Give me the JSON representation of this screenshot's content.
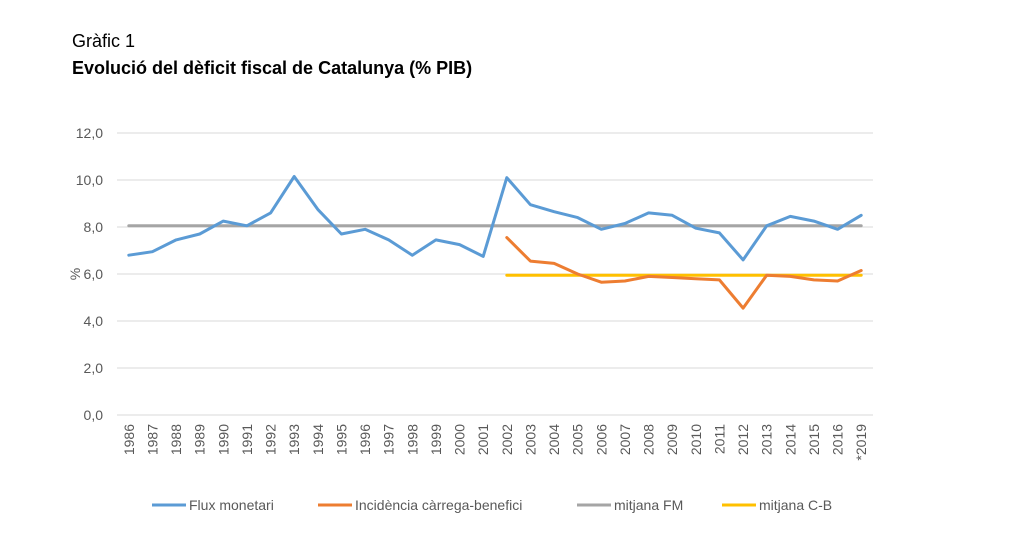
{
  "header": {
    "subtitle": "Gràfic 1",
    "title": "Evolució del dèficit fiscal de Catalunya (% PIB)"
  },
  "chart_data": {
    "type": "line",
    "title": "Evolució del dèficit fiscal de Catalunya (% PIB)",
    "xlabel": "",
    "ylabel": "%",
    "ylim": [
      0,
      12
    ],
    "yticks": [
      "0,0",
      "2,0",
      "4,0",
      "6,0",
      "8,0",
      "10,0",
      "12,0"
    ],
    "ytick_values": [
      0,
      2,
      4,
      6,
      8,
      10,
      12
    ],
    "grid": true,
    "legend_position": "bottom",
    "categories": [
      "1986",
      "1987",
      "1988",
      "1989",
      "1990",
      "1991",
      "1992",
      "1993",
      "1994",
      "1995",
      "1996",
      "1997",
      "1998",
      "1999",
      "2000",
      "2001",
      "2002",
      "2003",
      "2004",
      "2005",
      "2006",
      "2007",
      "2008",
      "2009",
      "2010",
      "2011",
      "2012",
      "2013",
      "2014",
      "2015",
      "2016",
      "*2019"
    ],
    "series": [
      {
        "name": "Flux monetari",
        "color": "#5B9BD5",
        "values": [
          6.8,
          6.95,
          7.45,
          7.7,
          8.25,
          8.05,
          8.6,
          10.15,
          8.75,
          7.7,
          7.9,
          7.45,
          6.8,
          7.45,
          7.25,
          6.75,
          10.1,
          8.95,
          8.65,
          8.4,
          7.9,
          8.15,
          8.6,
          8.5,
          7.95,
          7.75,
          6.6,
          8.05,
          8.45,
          8.25,
          7.9,
          8.5
        ]
      },
      {
        "name": "Incidència càrrega-benefici",
        "color": "#ED7D31",
        "values": [
          null,
          null,
          null,
          null,
          null,
          null,
          null,
          null,
          null,
          null,
          null,
          null,
          null,
          null,
          null,
          null,
          7.55,
          6.55,
          6.45,
          6.0,
          5.65,
          5.7,
          5.9,
          5.85,
          5.8,
          5.75,
          4.55,
          5.95,
          5.9,
          5.75,
          5.7,
          6.15
        ]
      },
      {
        "name": "mitjana FM",
        "color": "#A5A5A5",
        "values": [
          8.05,
          8.05,
          8.05,
          8.05,
          8.05,
          8.05,
          8.05,
          8.05,
          8.05,
          8.05,
          8.05,
          8.05,
          8.05,
          8.05,
          8.05,
          8.05,
          8.05,
          8.05,
          8.05,
          8.05,
          8.05,
          8.05,
          8.05,
          8.05,
          8.05,
          8.05,
          8.05,
          8.05,
          8.05,
          8.05,
          8.05,
          8.05
        ]
      },
      {
        "name": "mitjana C-B",
        "color": "#FFC000",
        "values": [
          null,
          null,
          null,
          null,
          null,
          null,
          null,
          null,
          null,
          null,
          null,
          null,
          null,
          null,
          null,
          null,
          5.95,
          5.95,
          5.95,
          5.95,
          5.95,
          5.95,
          5.95,
          5.95,
          5.95,
          5.95,
          5.95,
          5.95,
          5.95,
          5.95,
          5.95,
          5.95
        ]
      }
    ]
  }
}
